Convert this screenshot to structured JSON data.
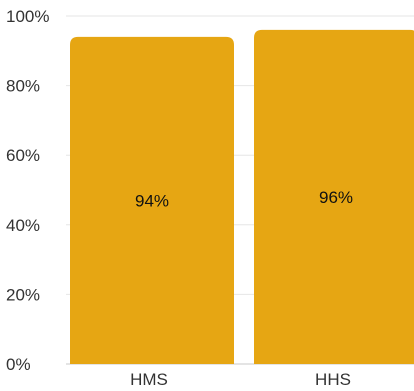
{
  "chart_data": {
    "type": "bar",
    "categories": [
      "HMS",
      "HHS"
    ],
    "values": [
      94,
      96
    ],
    "value_labels": [
      "94%",
      "96%"
    ],
    "yticks": [
      "0%",
      "20%",
      "40%",
      "60%",
      "80%",
      "100%"
    ],
    "ylim": [
      0,
      100
    ],
    "grid": true,
    "bar_color": "#E6A613"
  }
}
